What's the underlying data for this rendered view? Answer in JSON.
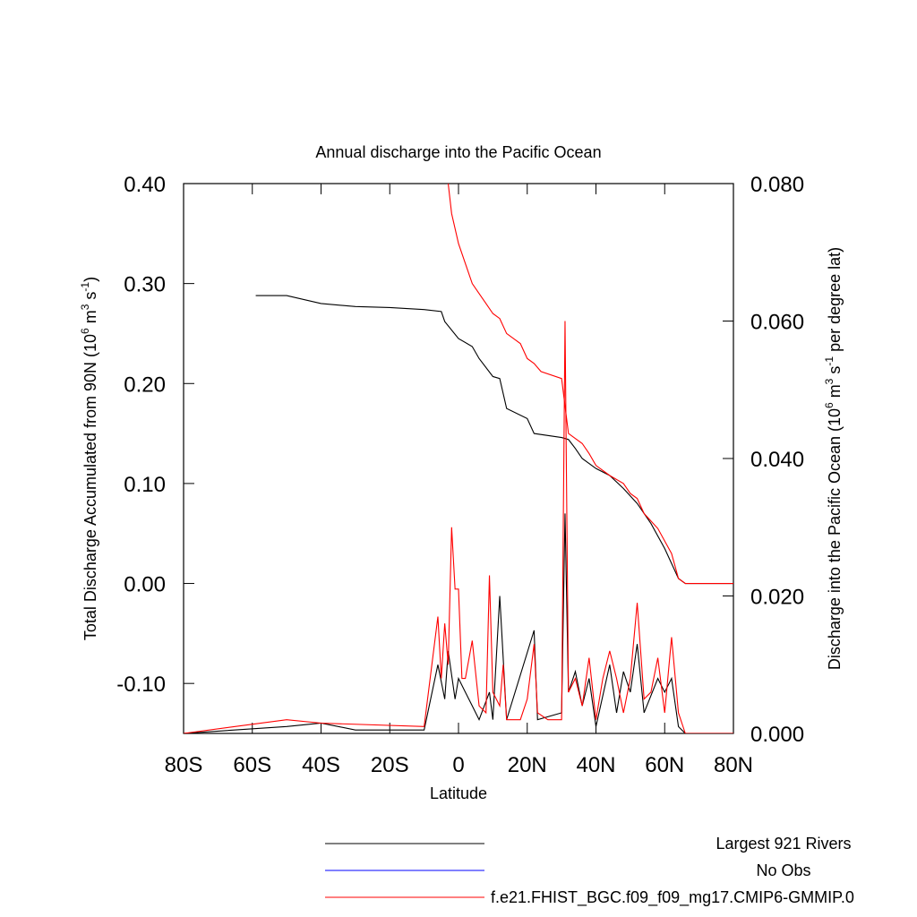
{
  "chart_data": {
    "type": "line",
    "title": "Annual discharge into the Pacific Ocean",
    "xlabel": "Latitude",
    "ylabel": [
      "Total Discharge Accumulated from 90N (10",
      "6",
      " m",
      "3",
      " s",
      "-1",
      ")"
    ],
    "y2label": [
      "Discharge into the Pacific Ocean (10",
      "6",
      " m",
      "3",
      " s",
      "-1",
      " per degree lat)"
    ],
    "xlim": [
      -80,
      80
    ],
    "xticks": [
      {
        "value": -80,
        "label": "80S"
      },
      {
        "value": -60,
        "label": "60S"
      },
      {
        "value": -40,
        "label": "40S"
      },
      {
        "value": -20,
        "label": "20S"
      },
      0,
      {
        "value": 20,
        "label": "20N"
      },
      {
        "value": 40,
        "label": "40N"
      },
      {
        "value": 60,
        "label": "60N"
      },
      {
        "value": 80,
        "label": "80N"
      }
    ],
    "ylim": [
      -0.15,
      0.4
    ],
    "yticks": [
      {
        "value": -0.1,
        "label": "-0.10"
      },
      {
        "value": 0,
        "label": "0.00"
      },
      {
        "value": 0.1,
        "label": "0.10"
      },
      {
        "value": 0.2,
        "label": "0.20"
      },
      {
        "value": 0.3,
        "label": "0.30"
      },
      {
        "value": 0.4,
        "label": "0.40"
      }
    ],
    "y2lim": [
      0,
      0.08
    ],
    "y2ticks": [
      {
        "value": 0,
        "label": "0.000"
      },
      {
        "value": 0.02,
        "label": "0.020"
      },
      {
        "value": 0.04,
        "label": "0.040"
      },
      {
        "value": 0.06,
        "label": "0.060"
      },
      {
        "value": 0.08,
        "label": "0.080"
      }
    ],
    "series": [
      {
        "color": "#000000",
        "axis": "y",
        "x": [
          -59,
          -50,
          -40,
          -30,
          -20,
          -10,
          -5,
          -4,
          0,
          4,
          6,
          10,
          12,
          14,
          20,
          22,
          30,
          32,
          34,
          36,
          40,
          44,
          48,
          52,
          56,
          60,
          62,
          64,
          66,
          80
        ],
        "values": [
          0.288,
          0.288,
          0.28,
          0.277,
          0.276,
          0.274,
          0.272,
          0.262,
          0.245,
          0.237,
          0.225,
          0.207,
          0.205,
          0.175,
          0.165,
          0.15,
          0.146,
          0.144,
          0.135,
          0.125,
          0.115,
          0.108,
          0.095,
          0.08,
          0.06,
          0.035,
          0.02,
          0.005,
          0.0,
          0.0
        ]
      },
      {
        "color": "#ff0000",
        "axis": "y",
        "x": [
          -3,
          -2,
          0,
          2,
          4,
          6,
          8,
          10,
          12,
          14,
          18,
          20,
          22,
          24,
          30,
          32,
          34,
          36,
          38,
          40,
          44,
          48,
          50,
          52,
          54,
          58,
          62,
          64,
          66,
          80
        ],
        "values": [
          0.4,
          0.37,
          0.34,
          0.32,
          0.3,
          0.29,
          0.28,
          0.27,
          0.265,
          0.25,
          0.24,
          0.225,
          0.22,
          0.212,
          0.205,
          0.15,
          0.145,
          0.14,
          0.13,
          0.118,
          0.108,
          0.1,
          0.09,
          0.085,
          0.07,
          0.055,
          0.03,
          0.005,
          0.0,
          0.0
        ]
      },
      {
        "color": "#000000",
        "axis": "y2",
        "x": [
          -80,
          -50,
          -40,
          -30,
          -10,
          -6,
          -4,
          -3,
          -1,
          0,
          2,
          4,
          6,
          9,
          10,
          12,
          14,
          22,
          23,
          30,
          31,
          32,
          34,
          36,
          38,
          40,
          44,
          46,
          48,
          50,
          52,
          54,
          58,
          60,
          62,
          64,
          66,
          80
        ],
        "values": [
          0,
          0.001,
          0.0015,
          0.0005,
          0.0005,
          0.01,
          0.005,
          0.012,
          0.005,
          0.008,
          0.006,
          0.004,
          0.002,
          0.006,
          0.002,
          0.02,
          0.002,
          0.015,
          0.002,
          0.003,
          0.032,
          0.006,
          0.009,
          0.004,
          0.008,
          0.001,
          0.01,
          0.003,
          0.009,
          0.006,
          0.013,
          0.003,
          0.008,
          0.006,
          0.008,
          0.001,
          0,
          0
        ]
      },
      {
        "color": "#ff0000",
        "axis": "y2",
        "x": [
          -80,
          -50,
          -40,
          -10,
          -6,
          -5,
          -4,
          -3,
          -2,
          -1,
          0,
          1,
          2,
          4,
          6,
          8,
          9,
          10,
          12,
          13,
          14,
          18,
          20,
          22,
          23,
          26,
          30,
          31,
          32,
          34,
          36,
          38,
          40,
          42,
          44,
          46,
          48,
          50,
          52,
          54,
          56,
          58,
          60,
          62,
          64,
          66,
          80
        ],
        "values": [
          0,
          0.002,
          0.0015,
          0.001,
          0.017,
          0.008,
          0.016,
          0.01,
          0.03,
          0.021,
          0.021,
          0.008,
          0.008,
          0.0135,
          0.004,
          0.003,
          0.023,
          0.006,
          0.004,
          0.01,
          0.002,
          0.002,
          0.005,
          0.013,
          0.003,
          0.002,
          0.002,
          0.06,
          0.006,
          0.008,
          0.004,
          0.011,
          0.002,
          0.008,
          0.012,
          0.008,
          0.003,
          0.008,
          0.019,
          0.005,
          0.006,
          0.011,
          0.003,
          0.014,
          0.003,
          0,
          0
        ]
      }
    ],
    "legend": [
      {
        "name": "Largest 921 Rivers",
        "color": "#000000"
      },
      {
        "name": "No Obs",
        "color": "#0000ff"
      },
      {
        "name": "f.e21.FHIST_BGC.f09_f09_mg17.CMIP6-GMMIP.0",
        "color": "#ff0000"
      }
    ]
  }
}
